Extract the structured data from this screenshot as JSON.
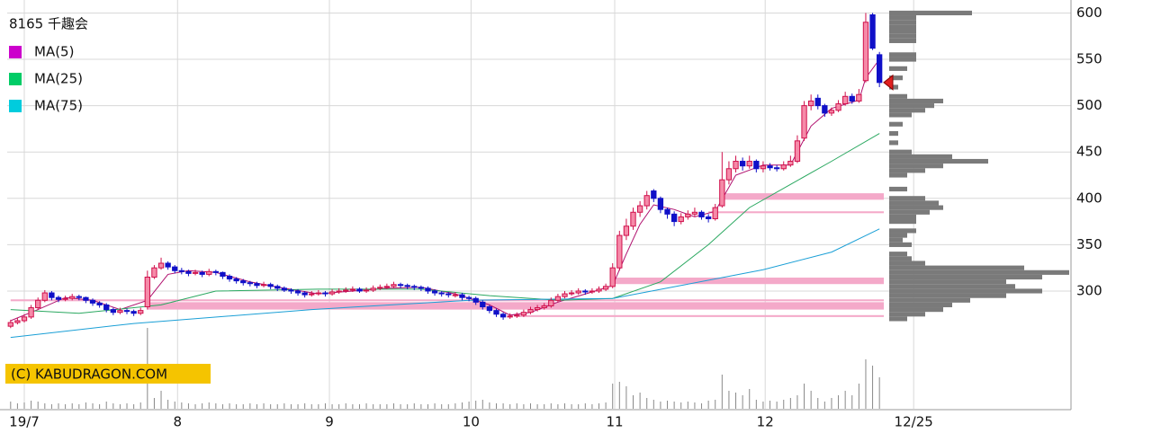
{
  "chart_data": {
    "type": "candlestick",
    "title": "8165 千趣会",
    "credit": "(C) KABUDRAGON.COM",
    "xlim": [
      -0.5,
      155
    ],
    "ylim": [
      173,
      614
    ],
    "yticks": [
      300,
      350,
      400,
      450,
      500,
      550,
      600
    ],
    "xticks": [
      {
        "value": 2,
        "label": "19/7"
      },
      {
        "value": 24.4,
        "label": "8"
      },
      {
        "value": 46.6,
        "label": "9"
      },
      {
        "value": 67.3,
        "label": "10"
      },
      {
        "value": 88.3,
        "label": "11"
      },
      {
        "value": 110.3,
        "label": "12"
      },
      {
        "value": 132,
        "label": "12/25"
      }
    ],
    "grid": true,
    "up_color": "#d0104c",
    "up_fill": "#f58aa8",
    "down_color": "#1010c8",
    "candles": [
      [
        262,
        269,
        260,
        266
      ],
      [
        266,
        271,
        264,
        268
      ],
      [
        268,
        275,
        266,
        272
      ],
      [
        272,
        285,
        270,
        282
      ],
      [
        282,
        293,
        280,
        290
      ],
      [
        290,
        301,
        288,
        298
      ],
      [
        298,
        300,
        290,
        293
      ],
      [
        293,
        295,
        288,
        291
      ],
      [
        291,
        295,
        289,
        292
      ],
      [
        292,
        297,
        290,
        294
      ],
      [
        294,
        296,
        290,
        293
      ],
      [
        293,
        294,
        287,
        290
      ],
      [
        290,
        292,
        284,
        287
      ],
      [
        287,
        289,
        282,
        285
      ],
      [
        285,
        287,
        277,
        280
      ],
      [
        280,
        282,
        274,
        277
      ],
      [
        277,
        282,
        275,
        279
      ],
      [
        279,
        281,
        275,
        278
      ],
      [
        278,
        280,
        273,
        276
      ],
      [
        276,
        282,
        274,
        279
      ],
      [
        283,
        322,
        280,
        315
      ],
      [
        315,
        328,
        313,
        325
      ],
      [
        325,
        336,
        323,
        330
      ],
      [
        330,
        332,
        323,
        326
      ],
      [
        326,
        328,
        319,
        322
      ],
      [
        322,
        325,
        318,
        321
      ],
      [
        321,
        323,
        316,
        319
      ],
      [
        319,
        323,
        317,
        320
      ],
      [
        320,
        322,
        315,
        318
      ],
      [
        318,
        324,
        316,
        321
      ],
      [
        321,
        323,
        317,
        320
      ],
      [
        320,
        321,
        313,
        316
      ],
      [
        316,
        318,
        310,
        313
      ],
      [
        313,
        315,
        308,
        311
      ],
      [
        311,
        313,
        306,
        309
      ],
      [
        309,
        311,
        305,
        308
      ],
      [
        308,
        310,
        303,
        306
      ],
      [
        306,
        310,
        304,
        307
      ],
      [
        307,
        309,
        302,
        305
      ],
      [
        305,
        307,
        300,
        303
      ],
      [
        303,
        305,
        299,
        301
      ],
      [
        301,
        303,
        297,
        300
      ],
      [
        300,
        302,
        295,
        298
      ],
      [
        298,
        300,
        293,
        296
      ],
      [
        296,
        300,
        294,
        297
      ],
      [
        297,
        301,
        295,
        298
      ],
      [
        298,
        300,
        294,
        297
      ],
      [
        297,
        302,
        295,
        299
      ],
      [
        299,
        303,
        297,
        300
      ],
      [
        300,
        304,
        298,
        301
      ],
      [
        301,
        305,
        299,
        302
      ],
      [
        302,
        304,
        298,
        300
      ],
      [
        300,
        304,
        298,
        301
      ],
      [
        301,
        306,
        299,
        303
      ],
      [
        303,
        307,
        301,
        304
      ],
      [
        304,
        308,
        302,
        305
      ],
      [
        305,
        310,
        303,
        307
      ],
      [
        307,
        309,
        303,
        306
      ],
      [
        306,
        308,
        302,
        305
      ],
      [
        305,
        307,
        301,
        304
      ],
      [
        304,
        306,
        300,
        303
      ],
      [
        303,
        305,
        297,
        300
      ],
      [
        300,
        302,
        295,
        298
      ],
      [
        298,
        300,
        294,
        297
      ],
      [
        297,
        299,
        293,
        296
      ],
      [
        295,
        299,
        293,
        296
      ],
      [
        296,
        298,
        290,
        293
      ],
      [
        293,
        295,
        289,
        292
      ],
      [
        292,
        294,
        285,
        288
      ],
      [
        288,
        290,
        280,
        283
      ],
      [
        283,
        285,
        276,
        279
      ],
      [
        279,
        281,
        272,
        275
      ],
      [
        275,
        277,
        269,
        272
      ],
      [
        272,
        276,
        270,
        273
      ],
      [
        273,
        277,
        271,
        274
      ],
      [
        274,
        280,
        272,
        277
      ],
      [
        277,
        283,
        275,
        280
      ],
      [
        280,
        285,
        278,
        282
      ],
      [
        282,
        287,
        280,
        284
      ],
      [
        284,
        293,
        282,
        290
      ],
      [
        290,
        297,
        288,
        294
      ],
      [
        294,
        300,
        292,
        297
      ],
      [
        297,
        301,
        295,
        298
      ],
      [
        298,
        303,
        296,
        300
      ],
      [
        300,
        302,
        296,
        299
      ],
      [
        299,
        303,
        297,
        300
      ],
      [
        300,
        305,
        298,
        302
      ],
      [
        302,
        308,
        300,
        305
      ],
      [
        305,
        330,
        303,
        325
      ],
      [
        325,
        365,
        322,
        360
      ],
      [
        360,
        378,
        355,
        370
      ],
      [
        370,
        390,
        366,
        385
      ],
      [
        385,
        397,
        380,
        392
      ],
      [
        392,
        408,
        388,
        403
      ],
      [
        408,
        410,
        396,
        400
      ],
      [
        400,
        402,
        384,
        388
      ],
      [
        388,
        390,
        378,
        383
      ],
      [
        383,
        386,
        370,
        375
      ],
      [
        375,
        384,
        372,
        380
      ],
      [
        380,
        387,
        377,
        383
      ],
      [
        383,
        390,
        380,
        385
      ],
      [
        385,
        387,
        377,
        380
      ],
      [
        380,
        383,
        374,
        378
      ],
      [
        378,
        394,
        376,
        390
      ],
      [
        392,
        450,
        390,
        420
      ],
      [
        420,
        440,
        415,
        432
      ],
      [
        432,
        446,
        428,
        440
      ],
      [
        440,
        444,
        430,
        435
      ],
      [
        435,
        446,
        432,
        440
      ],
      [
        440,
        442,
        428,
        432
      ],
      [
        432,
        440,
        428,
        435
      ],
      [
        435,
        438,
        430,
        433
      ],
      [
        433,
        436,
        429,
        432
      ],
      [
        432,
        440,
        430,
        436
      ],
      [
        436,
        446,
        434,
        440
      ],
      [
        440,
        468,
        438,
        462
      ],
      [
        465,
        505,
        462,
        500
      ],
      [
        500,
        512,
        495,
        505
      ],
      [
        508,
        512,
        496,
        500
      ],
      [
        500,
        502,
        488,
        492
      ],
      [
        492,
        498,
        489,
        495
      ],
      [
        495,
        506,
        493,
        502
      ],
      [
        502,
        515,
        500,
        510
      ],
      [
        510,
        513,
        502,
        505
      ],
      [
        505,
        518,
        503,
        512
      ],
      [
        527,
        600,
        525,
        590
      ],
      [
        598,
        600,
        560,
        562
      ],
      [
        555,
        558,
        520,
        525
      ]
    ],
    "y2lim": [
      0,
      100
    ],
    "volume_color": "#888888",
    "volume": [
      8,
      6,
      7,
      9,
      8,
      6,
      5,
      6,
      5,
      6,
      5,
      7,
      6,
      5,
      8,
      6,
      5,
      6,
      5,
      7,
      90,
      12,
      20,
      10,
      8,
      7,
      6,
      5,
      6,
      7,
      6,
      5,
      6,
      5,
      5,
      6,
      5,
      6,
      5,
      5,
      6,
      5,
      5,
      6,
      5,
      5,
      6,
      5,
      5,
      6,
      5,
      5,
      6,
      5,
      5,
      5,
      6,
      5,
      5,
      6,
      5,
      5,
      6,
      5,
      5,
      6,
      7,
      8,
      9,
      10,
      7,
      6,
      6,
      5,
      6,
      5,
      6,
      5,
      5,
      6,
      5,
      6,
      5,
      5,
      6,
      5,
      6,
      7,
      28,
      30,
      25,
      15,
      18,
      12,
      10,
      8,
      9,
      8,
      7,
      8,
      7,
      6,
      9,
      10,
      38,
      20,
      18,
      15,
      22,
      10,
      8,
      9,
      8,
      10,
      12,
      15,
      28,
      20,
      12,
      8,
      12,
      15,
      20,
      15,
      28,
      55,
      48,
      35
    ],
    "series": [
      {
        "name": "MA(5)",
        "color": "#cc00cc",
        "line_color": "#b0106e",
        "x": [
          0,
          4,
          8,
          12,
          16,
          20,
          23,
          26,
          30,
          35,
          40,
          45,
          50,
          55,
          60,
          65,
          70,
          73,
          76,
          80,
          85,
          88,
          90,
          92,
          94,
          97,
          100,
          103,
          106,
          110,
          114,
          117,
          120,
          124,
          125,
          127
        ],
        "values": [
          268,
          280,
          293,
          290,
          280,
          290,
          318,
          322,
          320,
          310,
          303,
          297,
          300,
          303,
          304,
          297,
          285,
          274,
          277,
          288,
          299,
          306,
          340,
          372,
          393,
          388,
          380,
          386,
          425,
          436,
          436,
          478,
          497,
          506,
          530,
          550
        ]
      },
      {
        "name": "MA(25)",
        "color": "#00cc66",
        "line_color": "#2aa860",
        "x": [
          0,
          10,
          22,
          30,
          45,
          60,
          70,
          80,
          88,
          95,
          102,
          108,
          114,
          120,
          127
        ],
        "values": [
          280,
          276,
          285,
          300,
          302,
          302,
          295,
          290,
          292,
          310,
          350,
          390,
          415,
          440,
          470
        ]
      },
      {
        "name": "MA(75)",
        "color": "#00ccdd",
        "line_color": "#1a9fd6",
        "x": [
          0,
          18,
          44,
          67,
          88,
          98,
          110,
          120,
          127
        ],
        "values": [
          250,
          265,
          280,
          290,
          292,
          306,
          323,
          342,
          367
        ]
      }
    ],
    "band_color": "#f4a9c9",
    "bands": [
      [
        402,
        104,
        7
      ],
      [
        385,
        102,
        2
      ],
      [
        311,
        88,
        7
      ],
      [
        290,
        0,
        2
      ],
      [
        284,
        20,
        8
      ],
      [
        273,
        74,
        2
      ]
    ],
    "profile": {
      "color": "#7a7a7a",
      "xlim": [
        0,
        200
      ],
      "levels": [
        600,
        595,
        590,
        585,
        580,
        575,
        570,
        555,
        550,
        540,
        530,
        520,
        510,
        505,
        500,
        495,
        490,
        480,
        470,
        460,
        450,
        445,
        440,
        435,
        430,
        425,
        410,
        400,
        395,
        390,
        385,
        380,
        375,
        365,
        360,
        355,
        350,
        340,
        335,
        330,
        325,
        320,
        315,
        310,
        305,
        300,
        295,
        290,
        285,
        280,
        275,
        270
      ],
      "values": [
        92,
        30,
        30,
        30,
        30,
        30,
        30,
        30,
        30,
        20,
        15,
        10,
        20,
        60,
        50,
        40,
        25,
        15,
        10,
        10,
        25,
        70,
        110,
        60,
        40,
        20,
        20,
        40,
        55,
        60,
        45,
        30,
        30,
        30,
        20,
        15,
        25,
        20,
        25,
        40,
        150,
        200,
        170,
        130,
        140,
        170,
        130,
        90,
        70,
        60,
        40,
        20
      ]
    },
    "marker": 525,
    "marker_color": "#e02020"
  }
}
